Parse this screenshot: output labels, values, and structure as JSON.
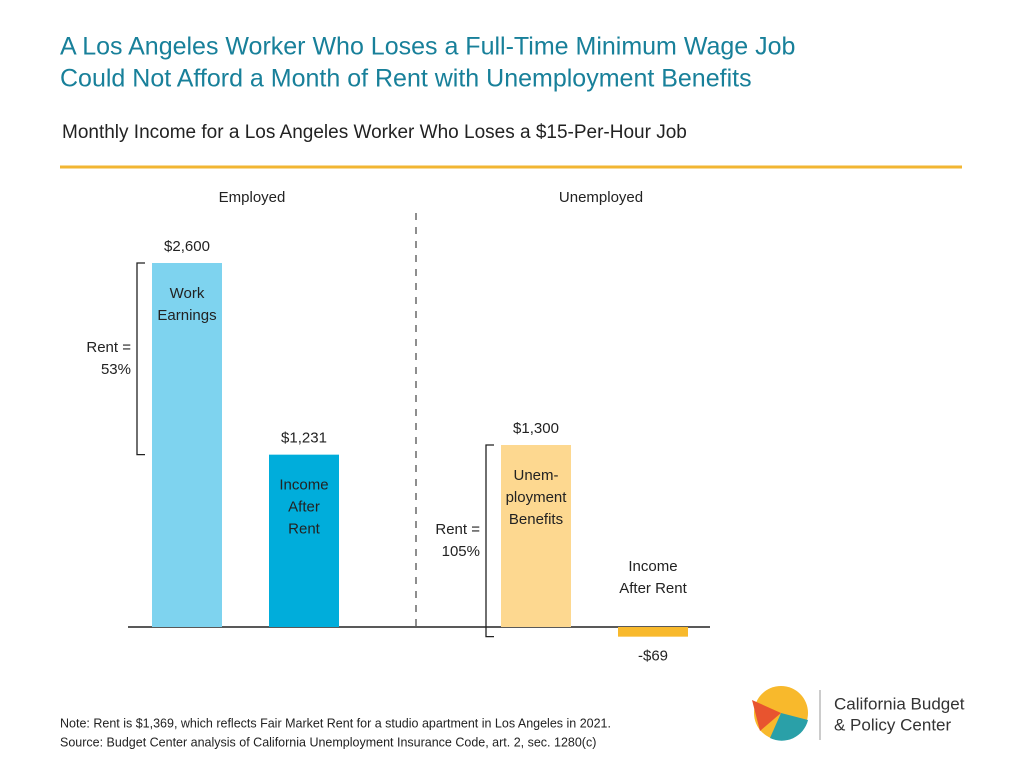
{
  "chart_data": {
    "type": "bar",
    "title": [
      "A Los Angeles Worker Who Loses a Full-Time Minimum Wage Job",
      "Could Not Afford a Month of Rent with Unemployment Benefits"
    ],
    "subtitle": "Monthly Income for a Los Angeles Worker Who Loses a $15-Per-Hour Job",
    "groups": [
      {
        "name": "Employed",
        "categories": [
          [
            "Work",
            "Earnings"
          ],
          [
            "Income",
            "After",
            "Rent"
          ]
        ],
        "values": [
          2600,
          1231
        ],
        "value_labels": [
          "$2,600",
          "$1,231"
        ],
        "colors": [
          "#7ed3ef",
          "#00addb"
        ],
        "annotation": [
          "Rent =",
          "53%"
        ]
      },
      {
        "name": "Unemployed",
        "categories": [
          [
            "Unem-",
            "ployment",
            "Benefits"
          ],
          [
            "Income",
            "After Rent"
          ]
        ],
        "values": [
          1300,
          -69
        ],
        "value_labels": [
          "$1,300",
          "-$69"
        ],
        "colors": [
          "#fdd890",
          "#f8b92c"
        ],
        "annotation": [
          "Rent =",
          "105%"
        ]
      }
    ],
    "notes": [
      "Note: Rent is $1,369, which reflects Fair Market Rent for a studio apartment in Los Angeles in 2021.",
      "Source: Budget Center analysis of California Unemployment Insurance Code, art. 2, sec. 1280(c)"
    ],
    "logo": [
      "California Budget",
      "& Policy Center"
    ]
  }
}
